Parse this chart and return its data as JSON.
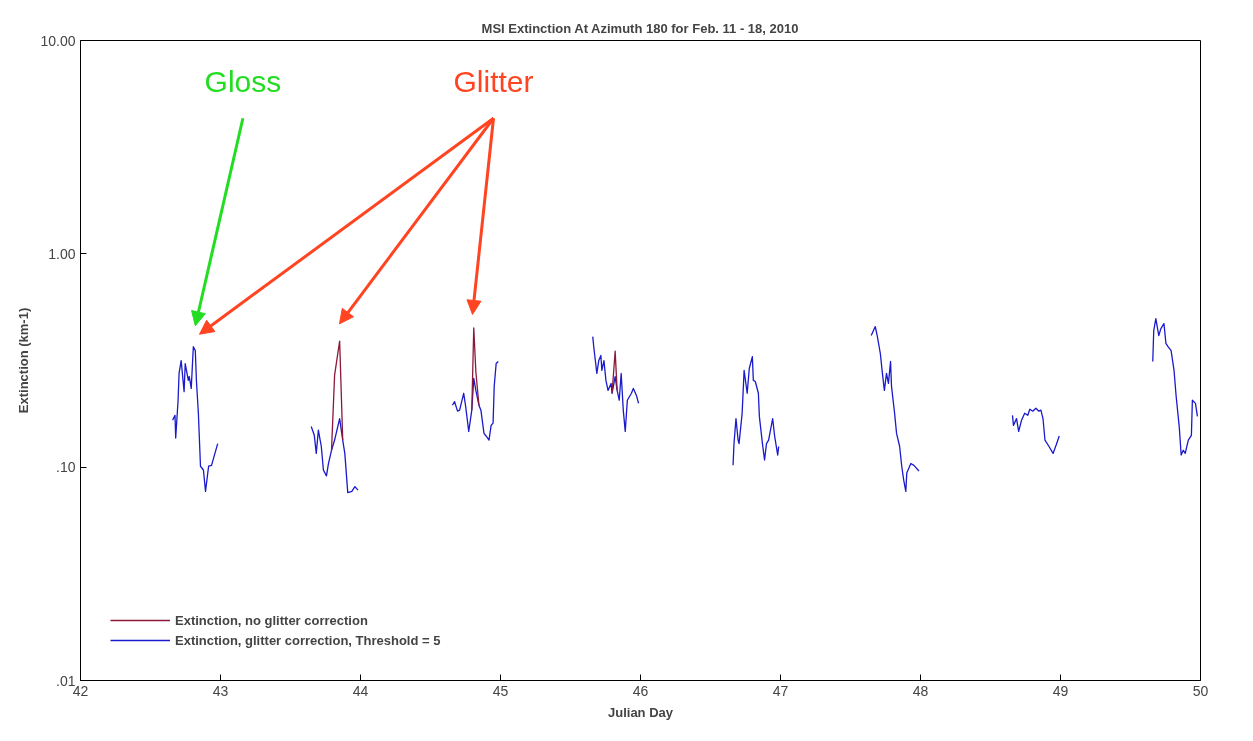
{
  "chart_data": {
    "type": "line",
    "title": "MSI Extinction At Azimuth 180 for Feb. 11 - 18, 2010",
    "xlabel": "Julian Day",
    "ylabel": "Extinction (km-1)",
    "log": "y",
    "grid": false,
    "legend": "bottom left",
    "line_style": "solid",
    "marker": "none",
    "xlim": [
      42,
      50
    ],
    "xticks": [
      42,
      43,
      44,
      45,
      46,
      47,
      48,
      49,
      50
    ],
    "ylim": [
      0.01,
      10
    ],
    "yticks": [
      {
        "value": 0.01,
        "label": ".01"
      },
      {
        "value": 0.1,
        "label": ".10"
      },
      {
        "value": 1,
        "label": "1.00"
      },
      {
        "value": 10,
        "label": "10.00"
      }
    ],
    "annotations": [
      "Gloss",
      "Glitter"
    ],
    "x": [
      42.658,
      42.675,
      42.68,
      42.697,
      42.704,
      42.719,
      42.74,
      42.748,
      42.77,
      42.777,
      42.791,
      42.806,
      42.82,
      42.828,
      42.842,
      42.857,
      42.878,
      42.893,
      42.915,
      42.936,
      42.98,
      43.3,
      43.648,
      43.67,
      43.684,
      43.699,
      43.72,
      43.735,
      43.757,
      43.771,
      43.793,
      43.815,
      43.851,
      43.873,
      43.888,
      43.909,
      43.938,
      43.96,
      43.982,
      44.3,
      44.657,
      44.672,
      44.693,
      44.708,
      44.737,
      44.751,
      44.773,
      44.795,
      44.809,
      44.824,
      44.846,
      44.86,
      44.882,
      44.897,
      44.918,
      44.933,
      44.947,
      44.955,
      44.969,
      44.984,
      45.3,
      45.659,
      45.666,
      45.68,
      45.688,
      45.702,
      45.717,
      45.724,
      45.739,
      45.753,
      45.768,
      45.79,
      45.797,
      45.819,
      45.833,
      45.848,
      45.862,
      45.877,
      45.891,
      45.906,
      45.935,
      45.949,
      45.971,
      45.986,
      46.3,
      46.661,
      46.668,
      46.682,
      46.697,
      46.704,
      46.726,
      46.74,
      46.762,
      46.777,
      46.799,
      46.806,
      46.82,
      46.842,
      46.849,
      46.871,
      46.886,
      46.9,
      46.915,
      46.944,
      46.958,
      46.98,
      46.987,
      47.3,
      47.648,
      47.677,
      47.692,
      47.713,
      47.728,
      47.742,
      47.757,
      47.771,
      47.786,
      47.793,
      47.815,
      47.829,
      47.851,
      47.866,
      47.88,
      47.895,
      47.902,
      47.931,
      47.953,
      47.989,
      48.3,
      48.657,
      48.664,
      48.686,
      48.701,
      48.722,
      48.744,
      48.766,
      48.781,
      48.802,
      48.824,
      48.846,
      48.86,
      48.875,
      48.889,
      48.918,
      48.947,
      48.969,
      48.991,
      49.3,
      49.659,
      49.666,
      49.681,
      49.702,
      49.717,
      49.739,
      49.753,
      49.768,
      49.79,
      49.811,
      49.826,
      49.848,
      49.862,
      49.877,
      49.891,
      49.913,
      49.935,
      49.942,
      49.964,
      49.978
    ],
    "series": [
      {
        "name": "Extinction, no glitter correction",
        "color": "#8b1a3a",
        "x": [
          43.793,
          43.815,
          43.851,
          43.873,
          44.3,
          44.795,
          44.809,
          44.824,
          44.846,
          45.3,
          45.797,
          45.819,
          45.833
        ],
        "values": [
          0.12,
          0.27,
          0.39,
          0.134,
          null,
          0.185,
          0.45,
          0.28,
          0.195,
          null,
          0.222,
          0.35,
          0.229
        ]
      },
      {
        "name": "Extinction, glitter correction, Threshold = 5",
        "color": "#1a1acc",
        "values": [
          0.166,
          0.175,
          0.137,
          0.206,
          0.275,
          0.316,
          0.226,
          0.306,
          0.255,
          0.266,
          0.234,
          0.367,
          0.352,
          0.255,
          0.179,
          0.101,
          0.097,
          0.077,
          0.101,
          0.102,
          0.129,
          null,
          0.155,
          0.141,
          0.116,
          0.149,
          0.125,
          0.097,
          0.091,
          0.104,
          0.12,
          0.134,
          0.169,
          0.134,
          0.116,
          0.076,
          0.077,
          0.081,
          0.078,
          null,
          0.195,
          0.203,
          0.183,
          0.185,
          0.222,
          0.193,
          0.147,
          0.185,
          0.261,
          0.229,
          0.195,
          0.185,
          0.144,
          0.14,
          0.134,
          0.157,
          0.161,
          0.239,
          0.306,
          0.313,
          null,
          0.409,
          0.367,
          0.306,
          0.275,
          0.316,
          0.334,
          0.284,
          0.316,
          0.255,
          0.229,
          0.247,
          0.222,
          0.266,
          0.229,
          0.206,
          0.275,
          0.185,
          0.147,
          0.206,
          0.222,
          0.234,
          0.217,
          0.199,
          null,
          0.102,
          0.129,
          0.169,
          0.134,
          0.129,
          0.179,
          0.284,
          0.222,
          0.29,
          0.33,
          0.255,
          0.252,
          0.222,
          0.173,
          0.129,
          0.108,
          0.129,
          0.134,
          0.169,
          0.14,
          0.114,
          0.125,
          null,
          0.414,
          0.456,
          0.409,
          0.341,
          0.275,
          0.229,
          0.275,
          0.247,
          0.313,
          0.239,
          0.179,
          0.144,
          0.125,
          0.101,
          0.087,
          0.077,
          0.094,
          0.104,
          0.102,
          0.096,
          null,
          0.175,
          0.157,
          0.169,
          0.147,
          0.166,
          0.179,
          0.175,
          0.187,
          0.183,
          0.189,
          0.183,
          0.185,
          0.169,
          0.134,
          0.125,
          0.116,
          0.127,
          0.14,
          null,
          0.313,
          0.437,
          0.497,
          0.414,
          0.446,
          0.471,
          0.38,
          0.367,
          0.352,
          0.284,
          0.215,
          0.155,
          0.114,
          0.12,
          0.116,
          0.134,
          0.141,
          0.206,
          0.199,
          0.173
        ]
      }
    ]
  }
}
